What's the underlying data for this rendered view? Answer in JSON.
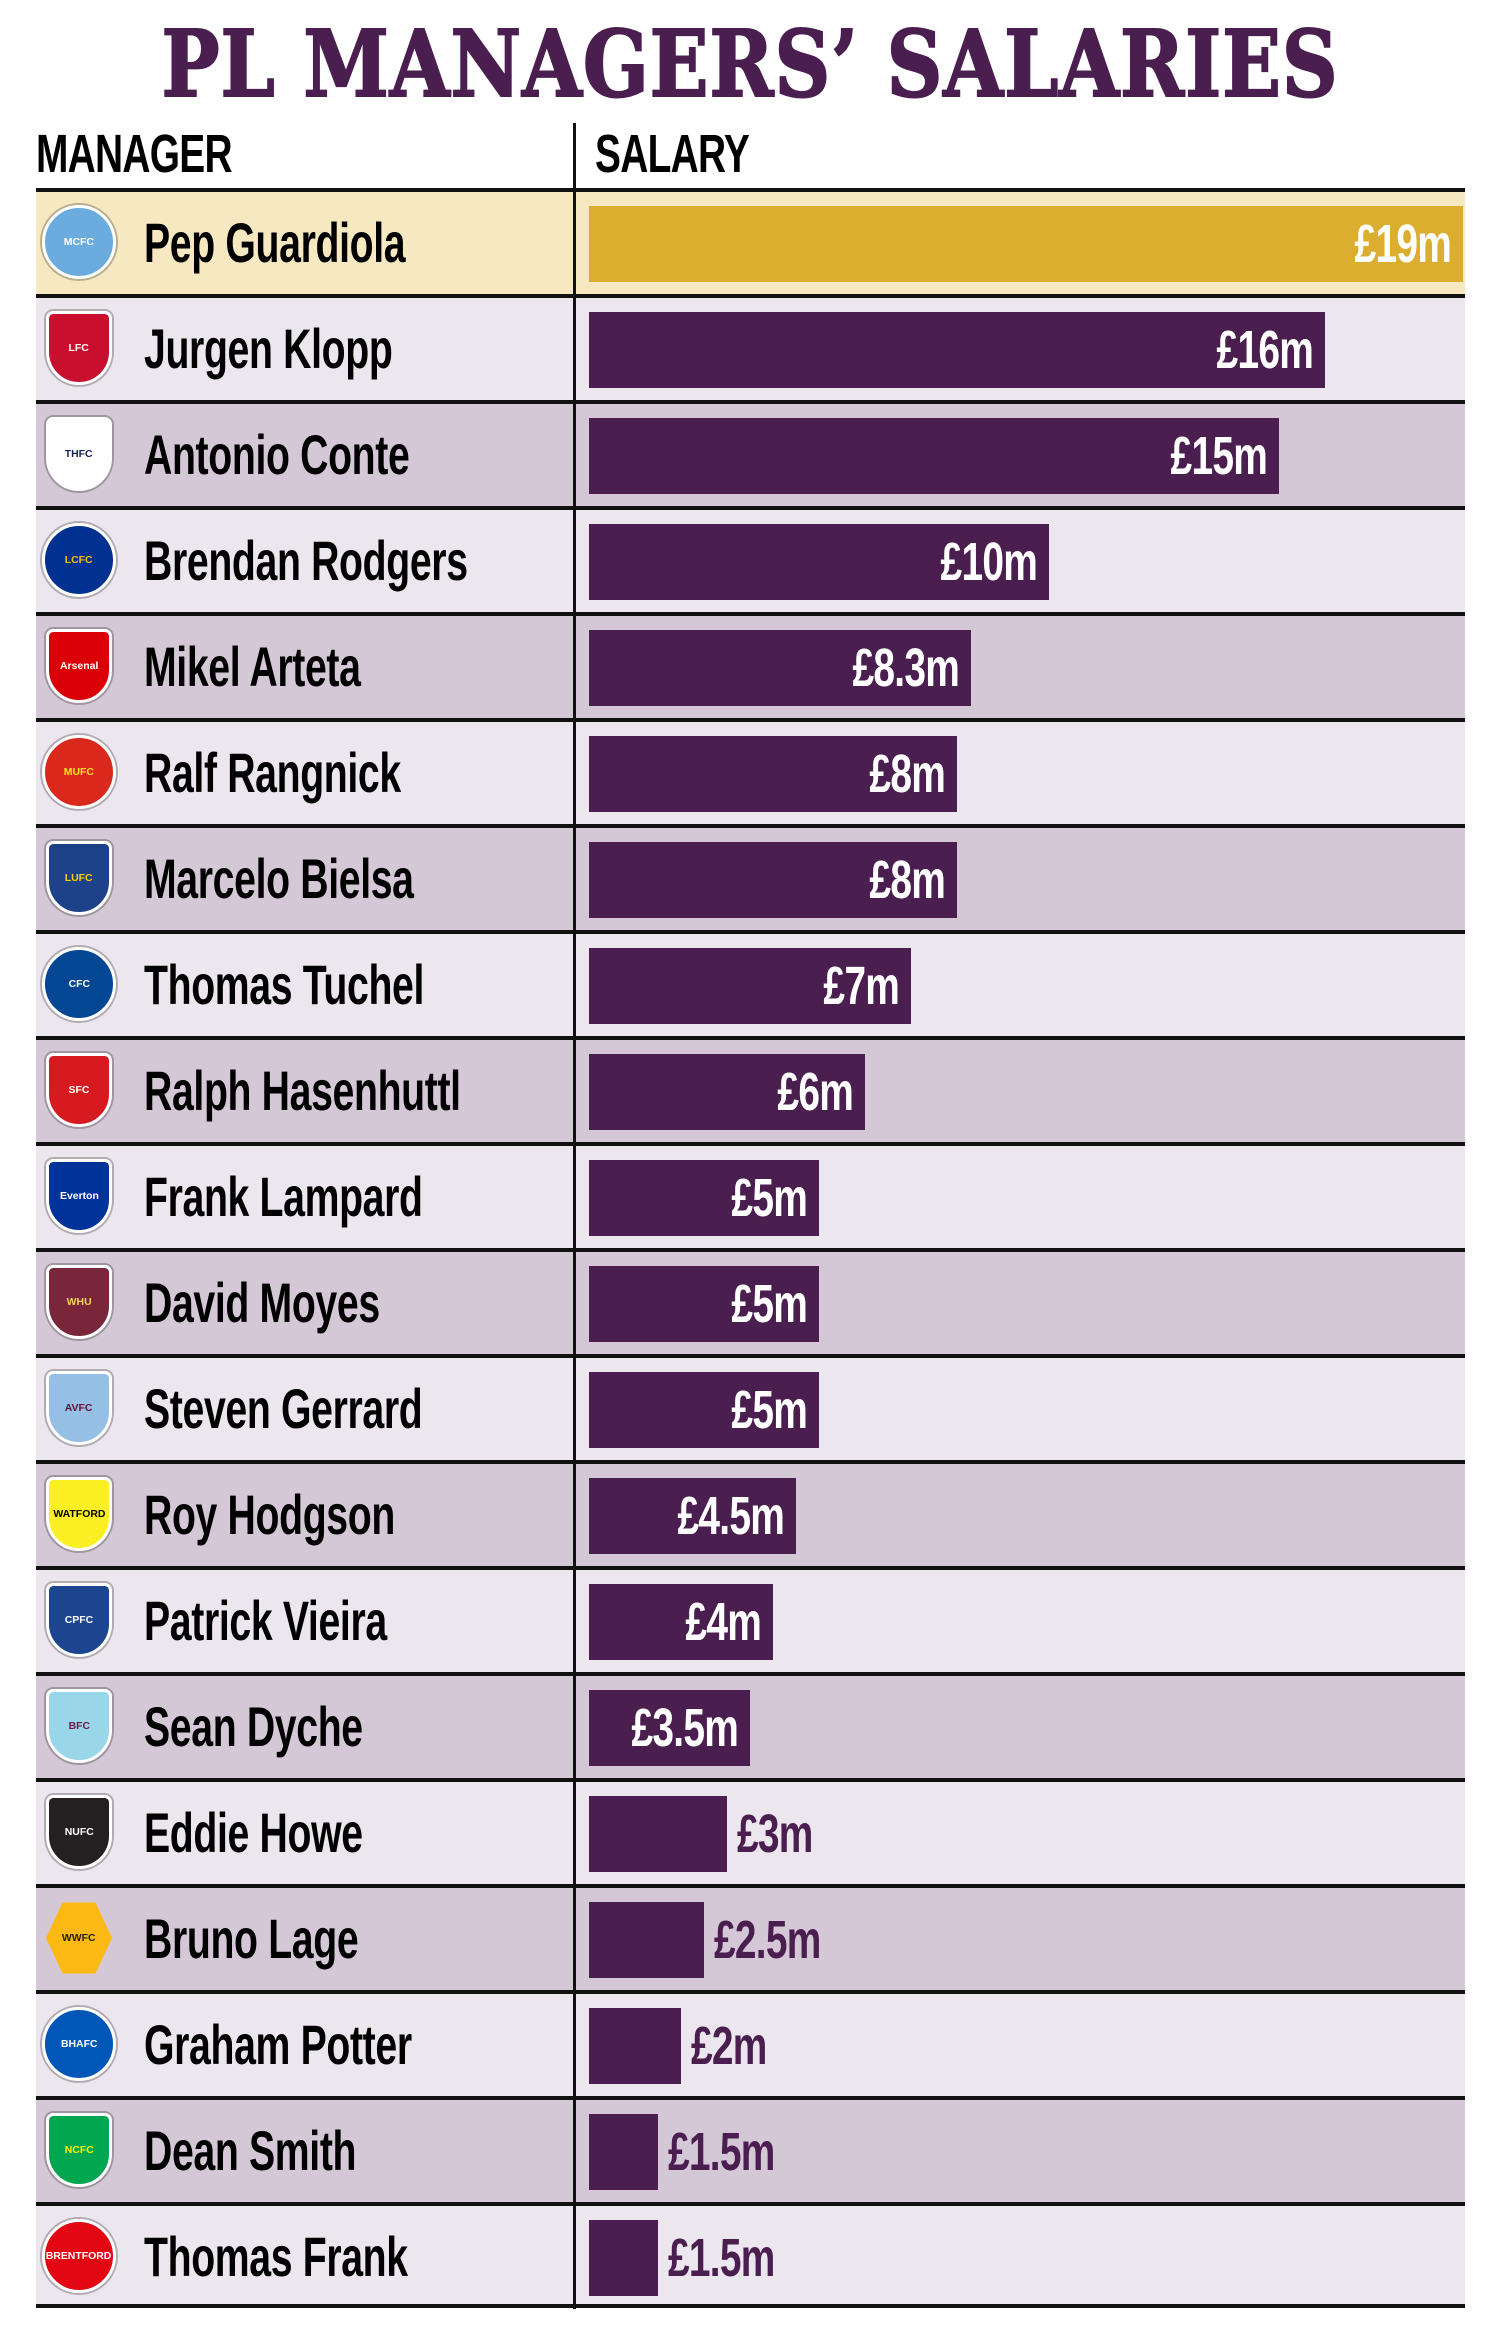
{
  "title": "PL MANAGERS’ SALARIES",
  "headers": {
    "manager": "MANAGER",
    "salary": "SALARY"
  },
  "colors": {
    "title": "#4a1f50",
    "bar": "#4a1f50",
    "highlight_bar": "#dcae2f",
    "highlight_row": "#f6e8c0",
    "row_light": "#ece6ee",
    "row_dark": "#d5c8d6"
  },
  "rows": [
    {
      "manager": "Pep Guardiola",
      "club": "Manchester City",
      "logo": "man-city-crest",
      "salary": "£19m",
      "value": 19,
      "crest_short": "MCFC"
    },
    {
      "manager": "Jurgen Klopp",
      "club": "Liverpool",
      "logo": "liverpool-crest",
      "salary": "£16m",
      "value": 16,
      "crest_short": "LFC"
    },
    {
      "manager": "Antonio Conte",
      "club": "Tottenham Hotspur",
      "logo": "tottenham-crest",
      "salary": "£15m",
      "value": 15,
      "crest_short": "THFC"
    },
    {
      "manager": "Brendan Rodgers",
      "club": "Leicester City",
      "logo": "leicester-crest",
      "salary": "£10m",
      "value": 10,
      "crest_short": "LCFC"
    },
    {
      "manager": "Mikel Arteta",
      "club": "Arsenal",
      "logo": "arsenal-crest",
      "salary": "£8.3m",
      "value": 8.3,
      "crest_short": "Arsenal"
    },
    {
      "manager": "Ralf Rangnick",
      "club": "Manchester United",
      "logo": "man-utd-crest",
      "salary": "£8m",
      "value": 8,
      "crest_short": "MUFC"
    },
    {
      "manager": "Marcelo Bielsa",
      "club": "Leeds United",
      "logo": "leeds-crest",
      "salary": "£8m",
      "value": 8,
      "crest_short": "LUFC"
    },
    {
      "manager": "Thomas Tuchel",
      "club": "Chelsea",
      "logo": "chelsea-crest",
      "salary": "£7m",
      "value": 7,
      "crest_short": "CFC"
    },
    {
      "manager": "Ralph Hasenhuttl",
      "club": "Southampton",
      "logo": "southampton-crest",
      "salary": "£6m",
      "value": 6,
      "crest_short": "SFC"
    },
    {
      "manager": "Frank Lampard",
      "club": "Everton",
      "logo": "everton-crest",
      "salary": "£5m",
      "value": 5,
      "crest_short": "Everton"
    },
    {
      "manager": "David Moyes",
      "club": "West Ham United",
      "logo": "west-ham-crest",
      "salary": "£5m",
      "value": 5,
      "crest_short": "WHU"
    },
    {
      "manager": "Steven Gerrard",
      "club": "Aston Villa",
      "logo": "aston-villa-crest",
      "salary": "£5m",
      "value": 5,
      "crest_short": "AVFC"
    },
    {
      "manager": "Roy Hodgson",
      "club": "Watford",
      "logo": "watford-crest",
      "salary": "£4.5m",
      "value": 4.5,
      "crest_short": "WATFORD"
    },
    {
      "manager": "Patrick Vieira",
      "club": "Crystal Palace",
      "logo": "crystal-palace-crest",
      "salary": "£4m",
      "value": 4,
      "crest_short": "CPFC"
    },
    {
      "manager": "Sean Dyche",
      "club": "Burnley",
      "logo": "burnley-crest",
      "salary": "£3.5m",
      "value": 3.5,
      "crest_short": "BFC"
    },
    {
      "manager": "Eddie Howe",
      "club": "Newcastle United",
      "logo": "newcastle-crest",
      "salary": "£3m",
      "value": 3,
      "crest_short": "NUFC"
    },
    {
      "manager": "Bruno Lage",
      "club": "Wolverhampton",
      "logo": "wolves-crest",
      "salary": "£2.5m",
      "value": 2.5,
      "crest_short": "WWFC"
    },
    {
      "manager": "Graham Potter",
      "club": "Brighton & Hove Albion",
      "logo": "brighton-crest",
      "salary": "£2m",
      "value": 2,
      "crest_short": "BHAFC"
    },
    {
      "manager": "Dean Smith",
      "club": "Norwich City",
      "logo": "norwich-crest",
      "salary": "£1.5m",
      "value": 1.5,
      "crest_short": "NCFC"
    },
    {
      "manager": "Thomas Frank",
      "club": "Brentford",
      "logo": "brentford-crest",
      "salary": "£1.5m",
      "value": 1.5,
      "crest_short": "BRENTFORD"
    }
  ],
  "chart_data": {
    "type": "bar",
    "orientation": "horizontal",
    "title": "PL MANAGERS’ SALARIES",
    "xlabel": "SALARY",
    "ylabel": "MANAGER",
    "categories": [
      "Pep Guardiola",
      "Jurgen Klopp",
      "Antonio Conte",
      "Brendan Rodgers",
      "Mikel Arteta",
      "Ralf Rangnick",
      "Marcelo Bielsa",
      "Thomas Tuchel",
      "Ralph Hasenhuttl",
      "Frank Lampard",
      "David Moyes",
      "Steven Gerrard",
      "Roy Hodgson",
      "Patrick Vieira",
      "Sean Dyche",
      "Eddie Howe",
      "Bruno Lage",
      "Graham Potter",
      "Dean Smith",
      "Thomas Frank"
    ],
    "values": [
      19,
      16,
      15,
      10,
      8.3,
      8,
      8,
      7,
      6,
      5,
      5,
      5,
      4.5,
      4,
      3.5,
      3,
      2.5,
      2,
      1.5,
      1.5
    ],
    "value_labels": [
      "£19m",
      "£16m",
      "£15m",
      "£10m",
      "£8.3m",
      "£8m",
      "£8m",
      "£7m",
      "£6m",
      "£5m",
      "£5m",
      "£5m",
      "£4.5m",
      "£4m",
      "£3.5m",
      "£3m",
      "£2.5m",
      "£2m",
      "£1.5m",
      "£1.5m"
    ],
    "unit": "£ million",
    "highlight": "Pep Guardiola",
    "grid": false,
    "legend": null
  }
}
